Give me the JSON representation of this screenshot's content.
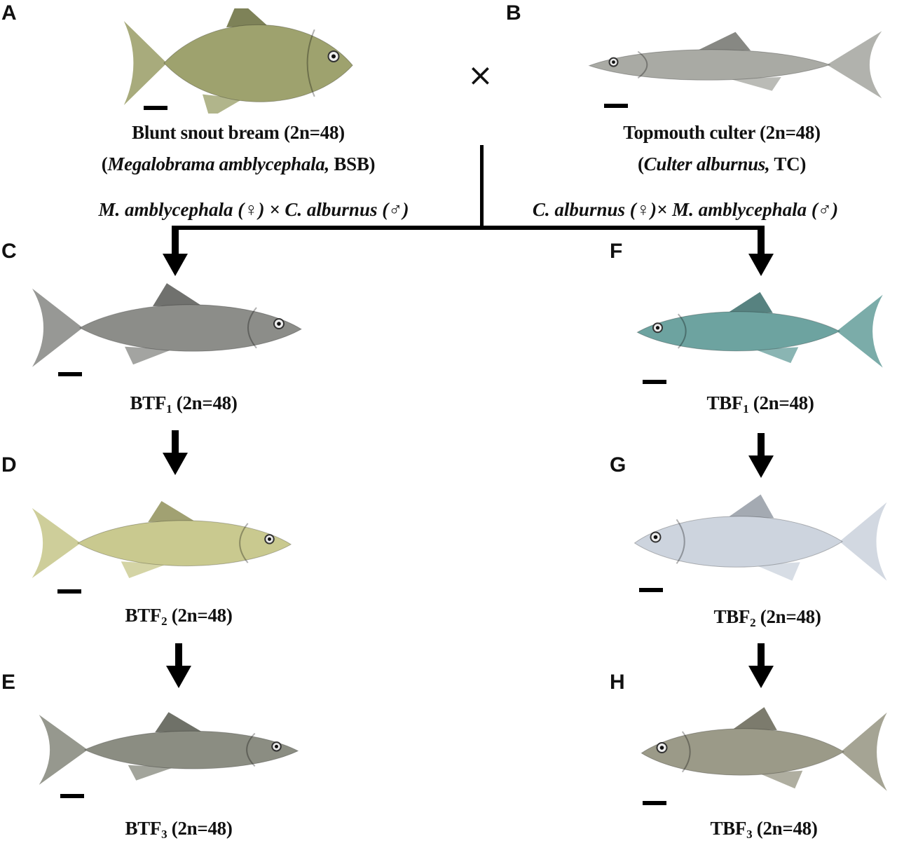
{
  "panels": {
    "A": "A",
    "B": "B",
    "C": "C",
    "D": "D",
    "E": "E",
    "F": "F",
    "G": "G",
    "H": "H"
  },
  "cross_symbol": "×",
  "parents": {
    "bsb": {
      "line1": "Blunt snout bream  (2n=48)",
      "open": "(",
      "species": "Megalobrama amblycephala,",
      "abbr": " BSB)",
      "color": "#9ea26e"
    },
    "tc": {
      "line1": "Topmouth culter (2n=48)",
      "open": "(",
      "species": "Culter alburnus,",
      "abbr": " TC)",
      "color": "#a9aaa4"
    }
  },
  "crosses": {
    "left": "M. amblycephala (♀)  × C. alburnus (♂)",
    "right": "C. alburnus (♀)× M. amblycephala (♂)"
  },
  "offspring": [
    {
      "id": "C",
      "prefix": "BTF",
      "sub": "1",
      "suffix": " (2n=48)",
      "color": "#8c8d89"
    },
    {
      "id": "D",
      "prefix": "BTF",
      "sub": "2",
      "suffix": " (2n=48)",
      "color": "#c9c98f"
    },
    {
      "id": "E",
      "prefix": "BTF",
      "sub": "3",
      "suffix": " (2n=48)",
      "color": "#8b8d82"
    },
    {
      "id": "F",
      "prefix": "TBF",
      "sub": "1",
      "suffix": " (2n=48)",
      "color": "#6da3a0"
    },
    {
      "id": "G",
      "prefix": "TBF",
      "sub": "2",
      "suffix": " (2n=48)",
      "color": "#cdd4de"
    },
    {
      "id": "H",
      "prefix": "TBF",
      "sub": "3",
      "suffix": " (2n=48)",
      "color": "#9b9a88"
    }
  ]
}
